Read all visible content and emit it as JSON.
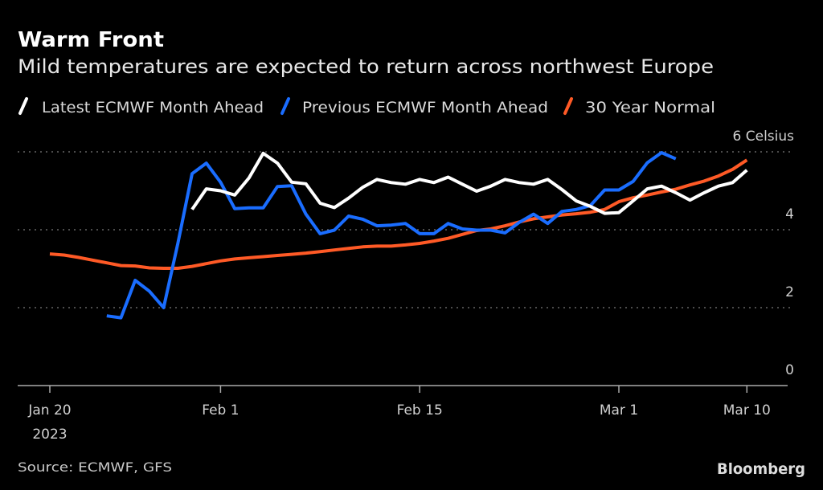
{
  "header": {
    "title": "Warm Front",
    "subtitle": "Mild temperatures are expected to return across northwest Europe"
  },
  "footer": {
    "source": "Source: ECMWF, GFS",
    "logo": "Bloomberg"
  },
  "chart_data": {
    "type": "line",
    "title": "Warm Front",
    "subtitle": "Mild temperatures are expected to return across northwest Europe",
    "xlabel": "",
    "ylabel": "Celsius",
    "ylim": [
      0,
      6
    ],
    "xlim": [
      "2023-01-20",
      "2023-03-10"
    ],
    "grid": true,
    "legend_position": "top",
    "x_start": "2023-01-20",
    "x_step": "1 day",
    "x_ticks": [
      {
        "date": "2023-01-20",
        "label": "Jan 20",
        "sublabel": "2023"
      },
      {
        "date": "2023-02-01",
        "label": "Feb 1"
      },
      {
        "date": "2023-02-15",
        "label": "Feb 15"
      },
      {
        "date": "2023-03-01",
        "label": "Mar 1"
      },
      {
        "date": "2023-03-10",
        "label": "Mar 10"
      }
    ],
    "y_ticks": [
      {
        "value": 6,
        "label": "6 Celsius"
      },
      {
        "value": 4,
        "label": "4"
      },
      {
        "value": 2,
        "label": "2"
      },
      {
        "value": 0,
        "label": "0"
      }
    ],
    "series": [
      {
        "name": "Latest ECMWF Month Ahead",
        "color": "#ffffff",
        "values": [
          null,
          null,
          null,
          null,
          null,
          null,
          null,
          null,
          null,
          null,
          4.52,
          5.05,
          5.0,
          4.89,
          5.33,
          5.96,
          5.71,
          5.22,
          5.18,
          4.68,
          4.57,
          4.81,
          5.09,
          5.29,
          5.21,
          5.17,
          5.29,
          5.21,
          5.35,
          5.17,
          4.99,
          5.12,
          5.29,
          5.21,
          5.17,
          5.29,
          5.03,
          4.74,
          4.6,
          4.42,
          4.44,
          4.74,
          5.05,
          5.12,
          4.95,
          4.76,
          4.95,
          5.12,
          5.21,
          5.53
        ]
      },
      {
        "name": "Previous ECMWF Month Ahead",
        "color": "#1a6dff",
        "values": [
          null,
          null,
          null,
          null,
          1.79,
          1.74,
          2.7,
          2.42,
          2.0,
          3.65,
          5.44,
          5.71,
          5.22,
          4.54,
          4.56,
          4.56,
          5.11,
          5.13,
          4.4,
          3.9,
          3.99,
          4.35,
          4.27,
          4.1,
          4.12,
          4.16,
          3.9,
          3.9,
          4.16,
          4.02,
          3.99,
          3.99,
          3.92,
          4.19,
          4.4,
          4.16,
          4.47,
          4.52,
          4.62,
          5.02,
          5.02,
          5.24,
          5.72,
          5.98,
          5.82,
          null,
          null,
          null,
          null,
          null
        ]
      },
      {
        "name": "30 Year Normal",
        "color": "#ff5a26",
        "values": [
          3.38,
          3.35,
          3.29,
          3.22,
          3.15,
          3.08,
          3.07,
          3.02,
          3.01,
          3.01,
          3.06,
          3.13,
          3.2,
          3.25,
          3.28,
          3.31,
          3.34,
          3.37,
          3.4,
          3.44,
          3.48,
          3.52,
          3.56,
          3.58,
          3.58,
          3.61,
          3.65,
          3.71,
          3.78,
          3.88,
          3.98,
          4.02,
          4.1,
          4.2,
          4.28,
          4.33,
          4.38,
          4.41,
          4.45,
          4.52,
          4.72,
          4.82,
          4.89,
          4.97,
          5.04,
          5.15,
          5.25,
          5.38,
          5.55,
          5.79
        ]
      }
    ]
  }
}
